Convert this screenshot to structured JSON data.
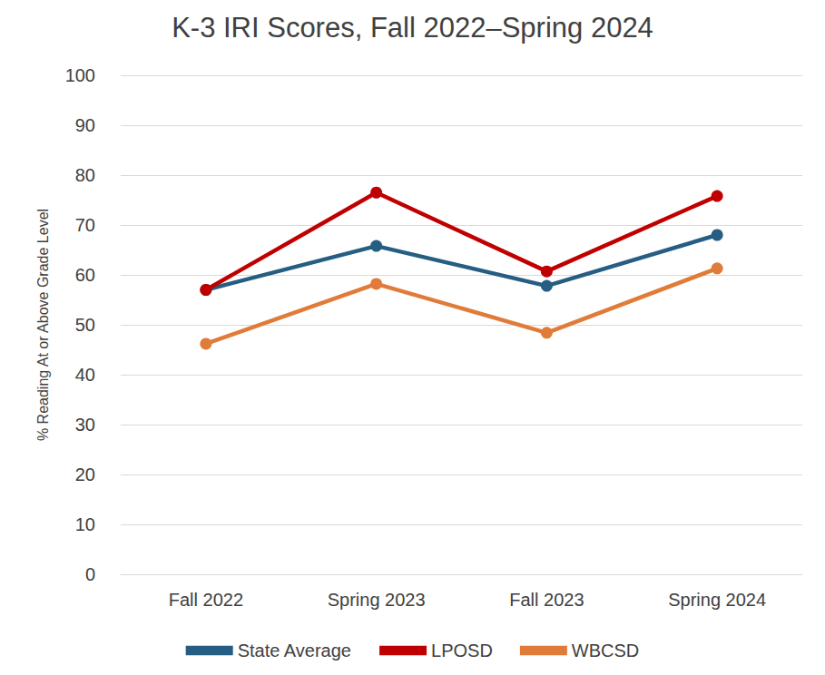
{
  "chart_data": {
    "type": "line",
    "title": "K-3 IRI Scores, Fall 2022–Spring 2024",
    "y_label": "% Reading At or Above Grade Level",
    "categories": [
      "Fall 2022",
      "Spring 2023",
      "Fall 2023",
      "Spring 2024"
    ],
    "series": [
      {
        "name": "State Average",
        "color": "#255e82",
        "values": [
          57,
          65.8,
          57.8,
          68
        ]
      },
      {
        "name": "LPOSD",
        "color": "#c00000",
        "values": [
          57,
          76.5,
          60.7,
          75.8
        ]
      },
      {
        "name": "WBCSD",
        "color": "#e07b39",
        "values": [
          46.2,
          58.2,
          48.4,
          61.3
        ]
      }
    ],
    "ylim": [
      0,
      100
    ],
    "yticks": [
      0,
      10,
      20,
      30,
      40,
      50,
      60,
      70,
      80,
      90,
      100
    ],
    "grid": true,
    "legend": "bottom",
    "marker": "circle"
  }
}
